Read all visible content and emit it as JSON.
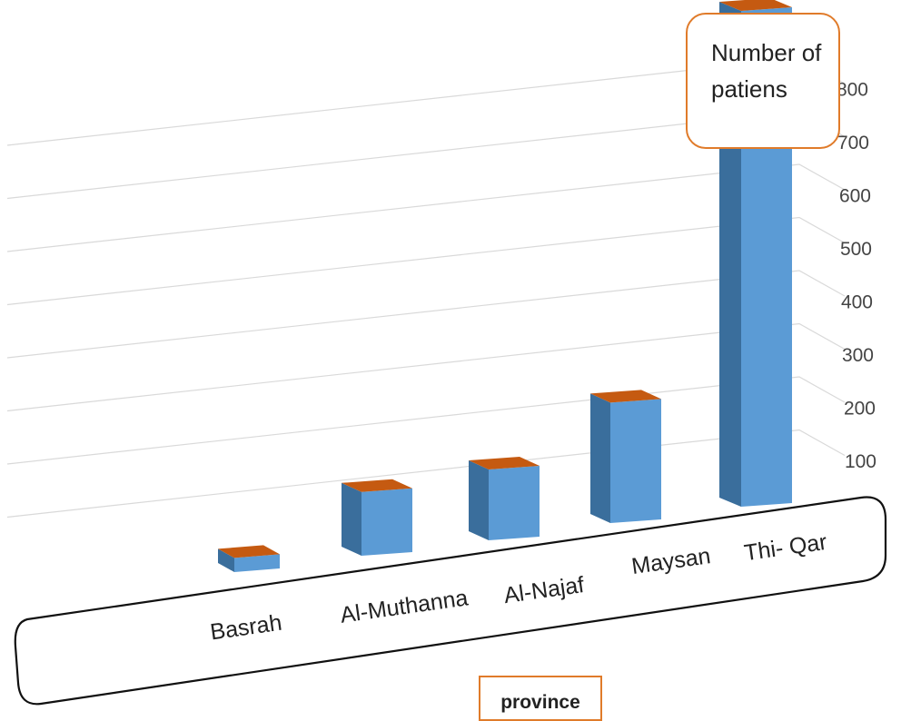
{
  "chart_data": {
    "type": "bar",
    "title": "",
    "xlabel": "province",
    "ylabel": "Number of patiens",
    "categories": [
      "Basrah",
      "Al-Muthanna",
      "Al-Najaf",
      "Maysan",
      "Thi- Qar"
    ],
    "series": [
      {
        "values": [
          20,
          90,
          100,
          170,
          700
        ]
      }
    ],
    "ylim": [
      0,
      800
    ],
    "yticks": [
      "100",
      "200",
      "300",
      "400",
      "500",
      "600",
      "700",
      "800"
    ],
    "grid": true,
    "style": "3d-column",
    "colors": {
      "bar_front": "#5b9bd5",
      "bar_side": "#3a6e9c",
      "bar_top": "#c55a11",
      "box_border": "#e07b2a"
    }
  }
}
